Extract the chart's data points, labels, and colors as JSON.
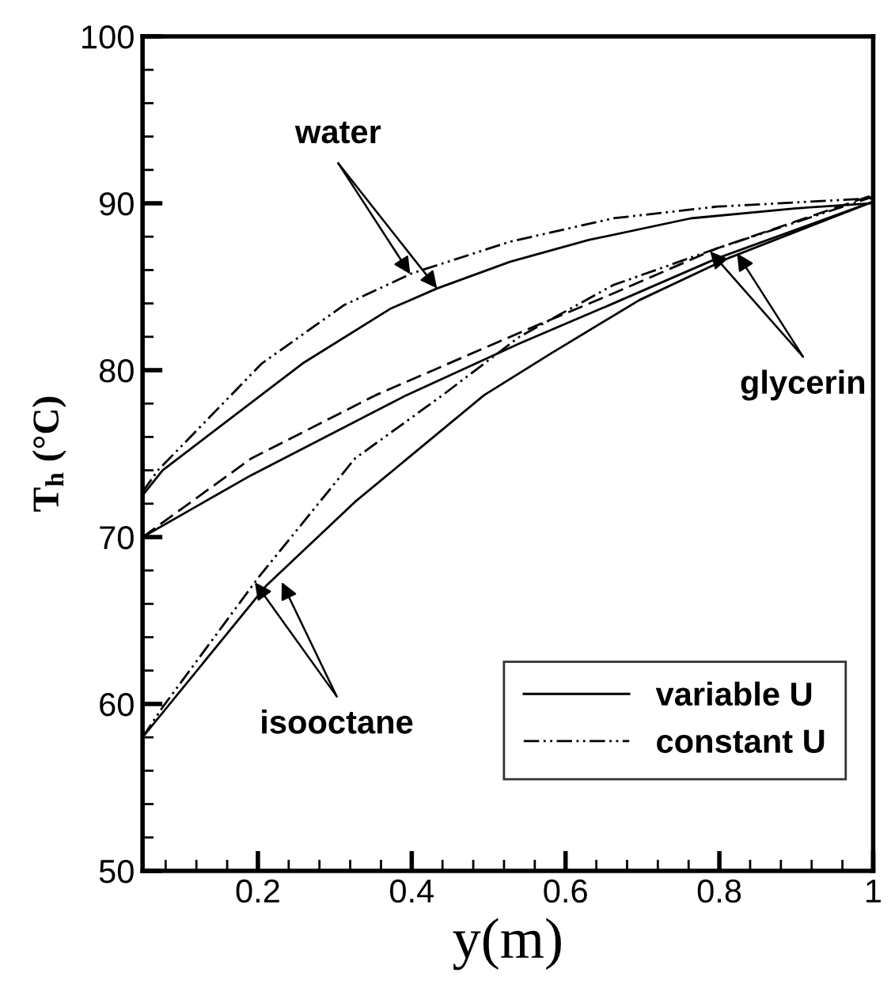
{
  "chart_data": {
    "type": "line",
    "xlabel": "y(m)",
    "ylabel": "T$_{h}$ (°C)",
    "xlim": [
      0.05,
      1
    ],
    "ylim": [
      50,
      100
    ],
    "xticks": [
      {
        "value": 0.08,
        "label": null
      },
      {
        "value": 0.12,
        "label": null
      },
      {
        "value": 0.16,
        "label": null
      },
      0.2,
      {
        "value": 0.24,
        "label": null
      },
      {
        "value": 0.28,
        "label": null
      },
      {
        "value": 0.32,
        "label": null
      },
      {
        "value": 0.36,
        "label": null
      },
      0.4,
      {
        "value": 0.44,
        "label": null
      },
      {
        "value": 0.48,
        "label": null
      },
      {
        "value": 0.52,
        "label": null
      },
      {
        "value": 0.56,
        "label": null
      },
      0.6,
      {
        "value": 0.64,
        "label": null
      },
      {
        "value": 0.68,
        "label": null
      },
      {
        "value": 0.72,
        "label": null
      },
      {
        "value": 0.76,
        "label": null
      },
      0.8,
      {
        "value": 0.84,
        "label": null
      },
      {
        "value": 0.88,
        "label": null
      },
      {
        "value": 0.92,
        "label": null
      },
      {
        "value": 0.96,
        "label": null
      },
      1
    ],
    "yticks": [
      50,
      {
        "value": 52,
        "label": null
      },
      {
        "value": 54,
        "label": null
      },
      {
        "value": 56,
        "label": null
      },
      {
        "value": 58,
        "label": null
      },
      60,
      {
        "value": 62,
        "label": null
      },
      {
        "value": 64,
        "label": null
      },
      {
        "value": 66,
        "label": null
      },
      {
        "value": 68,
        "label": null
      },
      70,
      {
        "value": 72,
        "label": null
      },
      {
        "value": 74,
        "label": null
      },
      {
        "value": 76,
        "label": null
      },
      {
        "value": 78,
        "label": null
      },
      80,
      {
        "value": 82,
        "label": null
      },
      {
        "value": 84,
        "label": null
      },
      {
        "value": 86,
        "label": null
      },
      {
        "value": 88,
        "label": null
      },
      90,
      {
        "value": 92,
        "label": null
      },
      {
        "value": 94,
        "label": null
      },
      {
        "value": 96,
        "label": null
      },
      {
        "value": 98,
        "label": null
      },
      100
    ],
    "grid": false,
    "legend": "bottom right",
    "marker": "none",
    "series": [
      {
        "name": "variable U",
        "color": "#000000",
        "line_style": "solid",
        "x": [
          0.05,
          0.076,
          0.258,
          0.373,
          0.433,
          0.528,
          0.63,
          0.763,
          0.9,
          1.0
        ],
        "values": [
          72.5,
          74.0,
          80.4,
          83.7,
          84.9,
          86.5,
          87.8,
          89.1,
          89.7,
          90.0
        ]
      },
      {
        "name": "constant U",
        "color": "#000000",
        "line_style": "dashdot",
        "x": [
          0.05,
          0.07,
          0.205,
          0.312,
          0.4,
          0.528,
          0.662,
          0.797,
          1.0
        ],
        "values": [
          72.7,
          74.0,
          80.4,
          83.9,
          85.8,
          87.7,
          89.1,
          89.8,
          90.3
        ]
      },
      {
        "color": "#000000",
        "line_style": "solid",
        "x": [
          0.05,
          0.191,
          0.393,
          0.54,
          0.662,
          0.797,
          1.0
        ],
        "values": [
          70.0,
          73.7,
          78.5,
          81.6,
          84.0,
          86.7,
          90.1
        ]
      },
      {
        "color": "#000000",
        "line_style": "dashed",
        "x": [
          0.05,
          0.191,
          0.353,
          0.548,
          0.662,
          0.797,
          1.0
        ],
        "values": [
          70.0,
          74.7,
          78.5,
          82.4,
          84.6,
          87.3,
          90.5
        ]
      },
      {
        "color": "#000000",
        "line_style": "solid",
        "x": [
          0.05,
          0.211,
          0.326,
          0.494,
          0.581,
          0.696,
          0.811,
          1.0
        ],
        "values": [
          58.0,
          67.1,
          72.1,
          78.5,
          81.0,
          84.2,
          86.7,
          90.1
        ]
      },
      {
        "color": "#000000",
        "line_style": "dashdot",
        "x": [
          0.05,
          0.076,
          0.201,
          0.326,
          0.44,
          0.54,
          0.662,
          0.797,
          1.0
        ],
        "values": [
          58.0,
          59.8,
          67.6,
          74.7,
          78.5,
          82.0,
          85.1,
          87.3,
          90.4
        ]
      }
    ],
    "annotations": [
      {
        "text": "water",
        "x": 0.433,
        "y": 84.9
      },
      {
        "text": "glycerin",
        "x": 0.823,
        "y": 87.0
      },
      {
        "text": "isooctane",
        "x": 0.231,
        "y": 67.3
      }
    ]
  }
}
